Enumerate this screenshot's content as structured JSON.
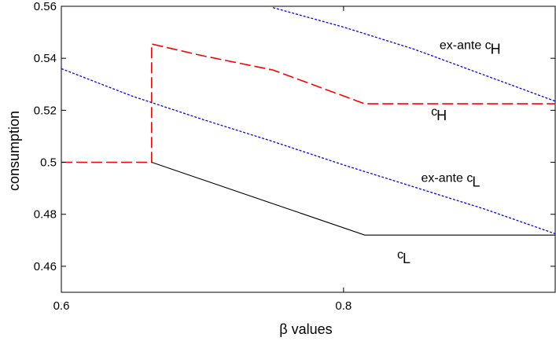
{
  "chart_data": {
    "type": "line",
    "title": "",
    "xlabel": "β values",
    "ylabel": "consumption",
    "xlim": [
      0.6,
      0.95
    ],
    "ylim": [
      0.45,
      0.56
    ],
    "x_ticks": [
      {
        "value": 0.6,
        "label": "0.6"
      },
      {
        "value": 0.8,
        "label": "0.8"
      }
    ],
    "y_ticks": [
      {
        "value": 0.46,
        "label": "0.46"
      },
      {
        "value": 0.48,
        "label": "0.48"
      },
      {
        "value": 0.5,
        "label": "0.5"
      },
      {
        "value": 0.52,
        "label": "0.52"
      },
      {
        "value": 0.54,
        "label": "0.54"
      },
      {
        "value": 0.56,
        "label": "0.56"
      }
    ],
    "grid": false,
    "series": [
      {
        "name": "ex-ante c_H",
        "color": "#0000ff",
        "style": "dotted",
        "x": [
          0.75,
          0.8,
          0.85,
          0.9,
          0.95
        ],
        "y": [
          0.5595,
          0.552,
          0.5435,
          0.5335,
          0.5235
        ]
      },
      {
        "name": "c_H",
        "color": "#ff0000",
        "style": "dashed",
        "x": [
          0.6,
          0.664,
          0.664,
          0.7,
          0.75,
          0.815,
          0.95
        ],
        "y": [
          0.5,
          0.5,
          0.5455,
          0.541,
          0.5355,
          0.5225,
          0.5225
        ]
      },
      {
        "name": "ex-ante c_L",
        "color": "#0000ff",
        "style": "dotted",
        "x": [
          0.6,
          0.65,
          0.7,
          0.75,
          0.8,
          0.85,
          0.9,
          0.95
        ],
        "y": [
          0.536,
          0.5255,
          0.5165,
          0.508,
          0.499,
          0.4905,
          0.482,
          0.4725
        ]
      },
      {
        "name": "c_L",
        "color": "#000000",
        "style": "solid",
        "x": [
          0.664,
          0.815,
          0.95
        ],
        "y": [
          0.5,
          0.472,
          0.472
        ]
      }
    ],
    "annotations": [
      {
        "text": "ex-ante c",
        "sub": "H",
        "x": 0.868,
        "y": 0.5435
      },
      {
        "text": "c",
        "sub": "H",
        "x": 0.862,
        "y": 0.518
      },
      {
        "text": "ex-ante c",
        "sub": "L",
        "x": 0.855,
        "y": 0.4925
      },
      {
        "text": "c",
        "sub": "L",
        "x": 0.838,
        "y": 0.463
      }
    ]
  }
}
